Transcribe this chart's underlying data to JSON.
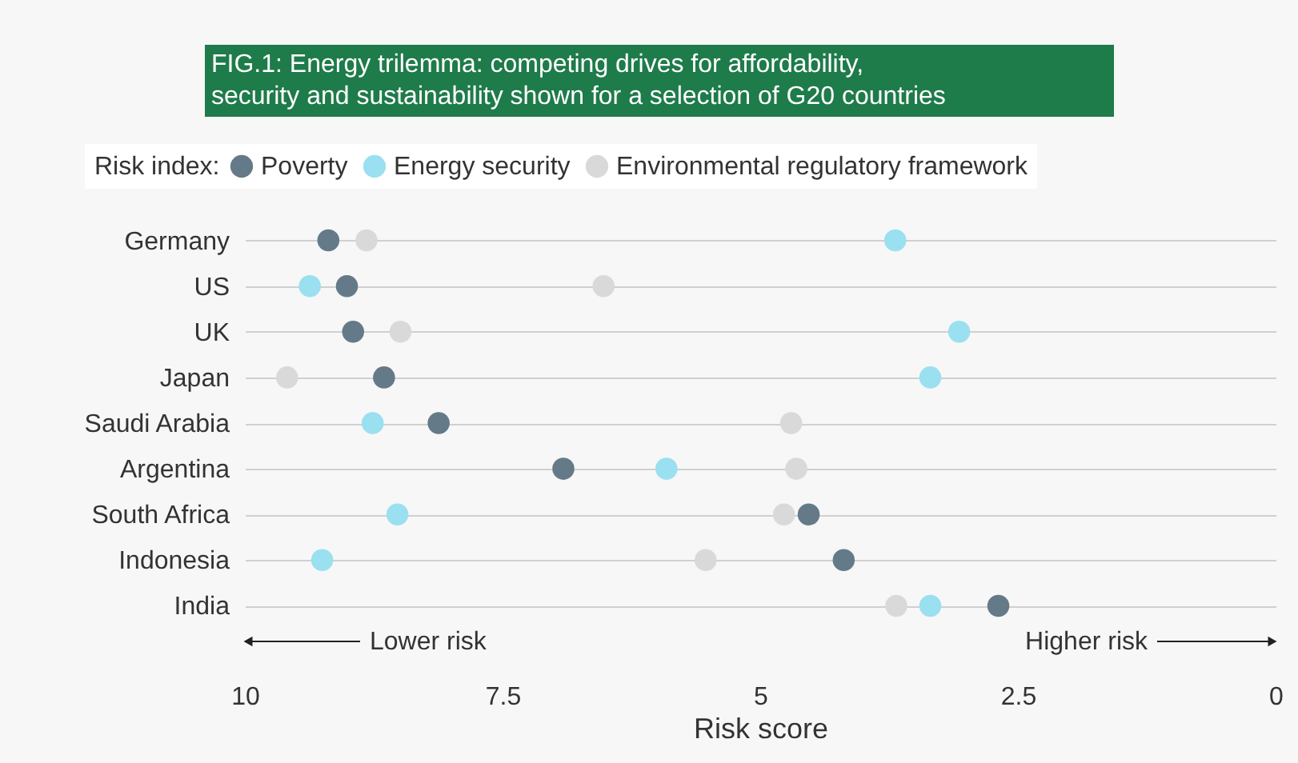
{
  "chart_data": {
    "type": "scatter",
    "title": "FIG.1: Energy trilemma: competing drives for affordability,\nsecurity and sustainability shown for a selection of G20 countries",
    "legend_title": "Risk index:",
    "xlabel": "Risk score",
    "annotations": [
      "Lower risk",
      "Higher risk"
    ],
    "categories": [
      "Germany",
      "US",
      "UK",
      "Japan",
      "Saudi Arabia",
      "Argentina",
      "South Africa",
      "Indonesia",
      "India"
    ],
    "series": [
      {
        "name": "Poverty",
        "color": "#647a88",
        "values": [
          9.19,
          9.01,
          8.95,
          8.65,
          8.12,
          6.91,
          4.53,
          4.19,
          2.69
        ]
      },
      {
        "name": "Energy security",
        "color": "#9ae0f0",
        "values": [
          3.69,
          9.37,
          3.07,
          3.35,
          8.76,
          5.91,
          8.52,
          9.25,
          3.35
        ]
      },
      {
        "name": "Environmental regulatory framework",
        "color": "#d9d9d9",
        "values": [
          8.82,
          6.52,
          8.49,
          9.59,
          4.7,
          4.65,
          4.77,
          5.53,
          3.68
        ]
      }
    ],
    "xlim": [
      10,
      0
    ],
    "xticks": [
      10,
      7.5,
      5,
      2.5,
      0
    ],
    "orientation": "horizontal",
    "grid": "y",
    "legend": "top",
    "marker": "circle"
  }
}
